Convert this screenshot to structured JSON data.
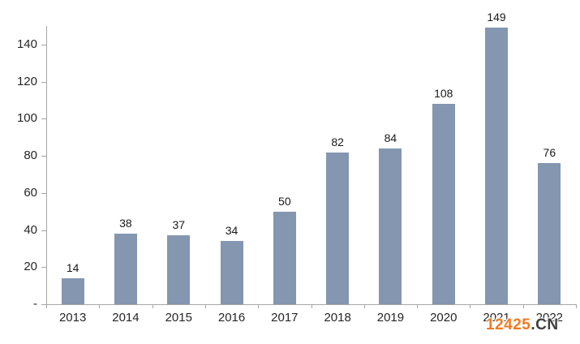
{
  "chart_data": {
    "type": "bar",
    "title": "",
    "xlabel": "",
    "ylabel": "",
    "categories": [
      "2013",
      "2014",
      "2015",
      "2016",
      "2017",
      "2018",
      "2019",
      "2020",
      "2021",
      "2022"
    ],
    "values": [
      14,
      38,
      37,
      34,
      50,
      82,
      84,
      108,
      149,
      76
    ],
    "data_labels_shown": true,
    "ylim": [
      0,
      150
    ],
    "y_ticks": [
      {
        "label": "-",
        "value": 0
      },
      {
        "label": "20",
        "value": 20
      },
      {
        "label": "40",
        "value": 40
      },
      {
        "label": "60",
        "value": 60
      },
      {
        "label": "80",
        "value": 80
      },
      {
        "label": "100",
        "value": 100
      },
      {
        "label": "120",
        "value": 120
      },
      {
        "label": "140",
        "value": 140
      }
    ],
    "grid": false,
    "legend": false,
    "bar_color": "#8496b0",
    "axis_color": "#a6a6a6",
    "text_color": "#262626"
  },
  "watermark": {
    "number": "12425",
    "suffix": ".CN",
    "number_color": "#f47a1f",
    "suffix_color": "#3f3f3f"
  }
}
